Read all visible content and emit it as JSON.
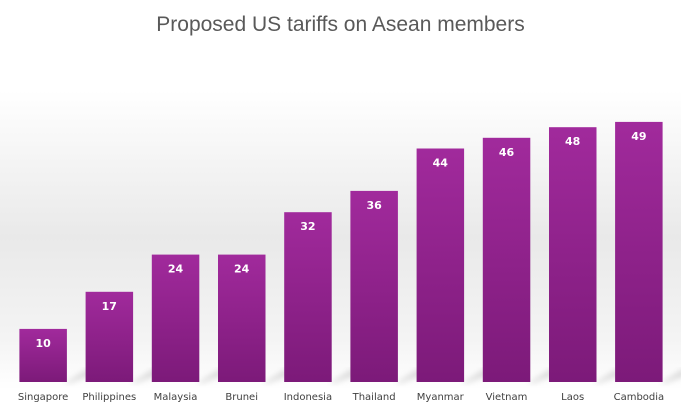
{
  "chart_data": {
    "type": "bar",
    "title": "Proposed US tariffs on Asean members",
    "xlabel": "",
    "ylabel": "",
    "categories": [
      "Singapore",
      "Philippines",
      "Malaysia",
      "Brunei",
      "Indonesia",
      "Thailand",
      "Myanmar",
      "Vietnam",
      "Laos",
      "Cambodia"
    ],
    "values": [
      10,
      17,
      24,
      24,
      32,
      36,
      44,
      46,
      48,
      49
    ],
    "ylim": [
      0,
      52
    ],
    "grid": false,
    "legend": "none",
    "data_labels": true,
    "colors": {
      "bar_top": "#a12a9c",
      "bar_bottom": "#7c1a79",
      "label_text": "#ffffff",
      "title_text": "#595959",
      "tick_text": "#404040"
    }
  }
}
